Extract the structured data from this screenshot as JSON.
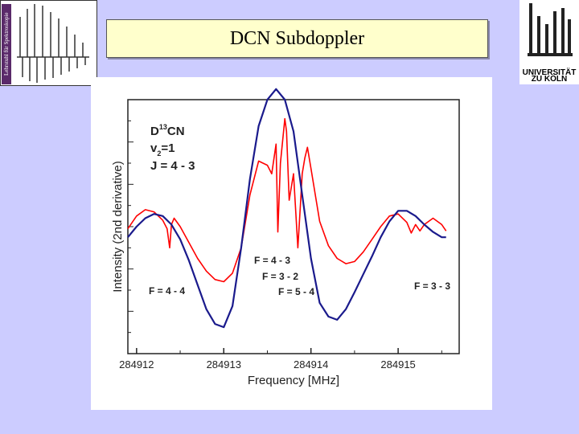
{
  "slide": {
    "title": "DCN Subdoppler",
    "left_logo_text": "Lehrstuhl für Spektroskopie",
    "right_logo": {
      "line1": "UNIVERSITÄT",
      "line2": "ZU KÖLN"
    }
  },
  "colors": {
    "background": "#ccccff",
    "title_box": "#ffffcc",
    "series_red": "#ff0000",
    "series_blue": "#1a1a8c"
  },
  "chart_data": {
    "type": "line",
    "title": "",
    "xlabel": "Frequency [MHz]",
    "ylabel": "Intensity (2nd derivative)",
    "xlim": [
      284911.9,
      284915.7
    ],
    "ylim": [
      -1.2,
      1.2
    ],
    "x_ticks": [
      284912,
      284913,
      284914,
      284915
    ],
    "x_tick_labels": [
      "284912",
      "284913",
      "284914",
      "284915"
    ],
    "grid": false,
    "series": [
      {
        "color": "#ff0000",
        "x": [
          284911.9,
          284912.0,
          284912.1,
          284912.2,
          284912.3,
          284912.35,
          284912.38,
          284912.4,
          284912.43,
          284912.5,
          284912.6,
          284912.7,
          284912.8,
          284912.9,
          284913.0,
          284913.1,
          284913.2,
          284913.3,
          284913.4,
          284913.5,
          284913.55,
          284913.6,
          284913.62,
          284913.65,
          284913.7,
          284913.72,
          284913.75,
          284913.8,
          284913.85,
          284913.88,
          284913.9,
          284913.93,
          284913.96,
          284914.0,
          284914.1,
          284914.2,
          284914.3,
          284914.4,
          284914.5,
          284914.6,
          284914.7,
          284914.8,
          284914.9,
          284915.0,
          284915.1,
          284915.15,
          284915.2,
          284915.25,
          284915.3,
          284915.4,
          284915.5,
          284915.55
        ],
        "y": [
          -0.02,
          0.1,
          0.16,
          0.14,
          0.06,
          -0.02,
          -0.2,
          0.02,
          0.08,
          0.0,
          -0.15,
          -0.3,
          -0.42,
          -0.5,
          -0.52,
          -0.44,
          -0.2,
          0.3,
          0.62,
          0.58,
          0.5,
          0.78,
          -0.05,
          0.6,
          1.02,
          0.9,
          0.25,
          0.5,
          -0.2,
          0.22,
          0.5,
          0.65,
          0.75,
          0.55,
          0.05,
          -0.18,
          -0.3,
          -0.35,
          -0.33,
          -0.24,
          -0.12,
          0.0,
          0.1,
          0.12,
          0.04,
          -0.06,
          0.02,
          -0.04,
          0.02,
          0.08,
          0.02,
          -0.04
        ]
      },
      {
        "color": "#1a1a8c",
        "x": [
          284911.9,
          284912.0,
          284912.1,
          284912.2,
          284912.3,
          284912.4,
          284912.5,
          284912.6,
          284912.7,
          284912.8,
          284912.9,
          284913.0,
          284913.1,
          284913.2,
          284913.3,
          284913.4,
          284913.5,
          284913.6,
          284913.7,
          284913.8,
          284913.9,
          284914.0,
          284914.1,
          284914.2,
          284914.3,
          284914.4,
          284914.5,
          284914.6,
          284914.7,
          284914.8,
          284914.9,
          284915.0,
          284915.1,
          284915.2,
          284915.3,
          284915.4,
          284915.5,
          284915.55
        ],
        "y": [
          -0.1,
          0.0,
          0.08,
          0.12,
          0.1,
          0.02,
          -0.12,
          -0.32,
          -0.55,
          -0.78,
          -0.92,
          -0.95,
          -0.75,
          -0.2,
          0.45,
          0.95,
          1.2,
          1.3,
          1.2,
          0.9,
          0.3,
          -0.3,
          -0.72,
          -0.85,
          -0.88,
          -0.78,
          -0.62,
          -0.45,
          -0.28,
          -0.1,
          0.05,
          0.15,
          0.15,
          0.1,
          0.02,
          -0.05,
          -0.1,
          -0.1
        ]
      }
    ],
    "annotations": {
      "molecule": {
        "main": "D",
        "sup": "13",
        "rest": "CN"
      },
      "vibration": {
        "main": "v",
        "sub": "2",
        "rest": "=1"
      },
      "rotation": "J = 4 - 3",
      "labels": [
        "F = 4 - 4",
        "F = 4 - 3",
        "F = 3 - 2",
        "F = 5 - 4",
        "F = 3 - 3"
      ]
    }
  }
}
